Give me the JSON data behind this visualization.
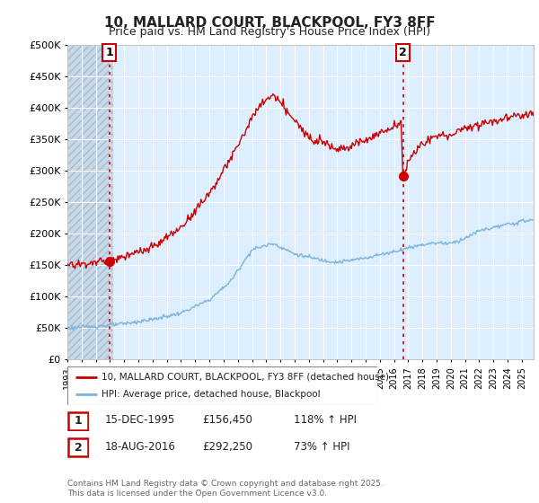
{
  "title1": "10, MALLARD COURT, BLACKPOOL, FY3 8FF",
  "title2": "Price paid vs. HM Land Registry's House Price Index (HPI)",
  "ytick_values": [
    0,
    50000,
    100000,
    150000,
    200000,
    250000,
    300000,
    350000,
    400000,
    450000,
    500000
  ],
  "ylim": [
    0,
    500000
  ],
  "xlim_start": 1993.0,
  "xlim_end": 2025.83,
  "hpi_color": "#7ab4d8",
  "price_color": "#cc0000",
  "vline_color": "#cc0000",
  "plot_bg_color": "#ddeeff",
  "hatch_facecolor": "#c8d8e8",
  "grid_color": "#ffffff",
  "marker1_x": 1995.96,
  "marker1_y": 156450,
  "marker2_x": 2016.63,
  "marker2_y": 292250,
  "legend_label1": "10, MALLARD COURT, BLACKPOOL, FY3 8FF (detached house)",
  "legend_label2": "HPI: Average price, detached house, Blackpool",
  "table_row1_num": "1",
  "table_row1_date": "15-DEC-1995",
  "table_row1_price": "£156,450",
  "table_row1_hpi": "118% ↑ HPI",
  "table_row2_num": "2",
  "table_row2_date": "18-AUG-2016",
  "table_row2_price": "£292,250",
  "table_row2_hpi": "73% ↑ HPI",
  "footnote": "Contains HM Land Registry data © Crown copyright and database right 2025.\nThis data is licensed under the Open Government Licence v3.0.",
  "background_color": "#ffffff"
}
